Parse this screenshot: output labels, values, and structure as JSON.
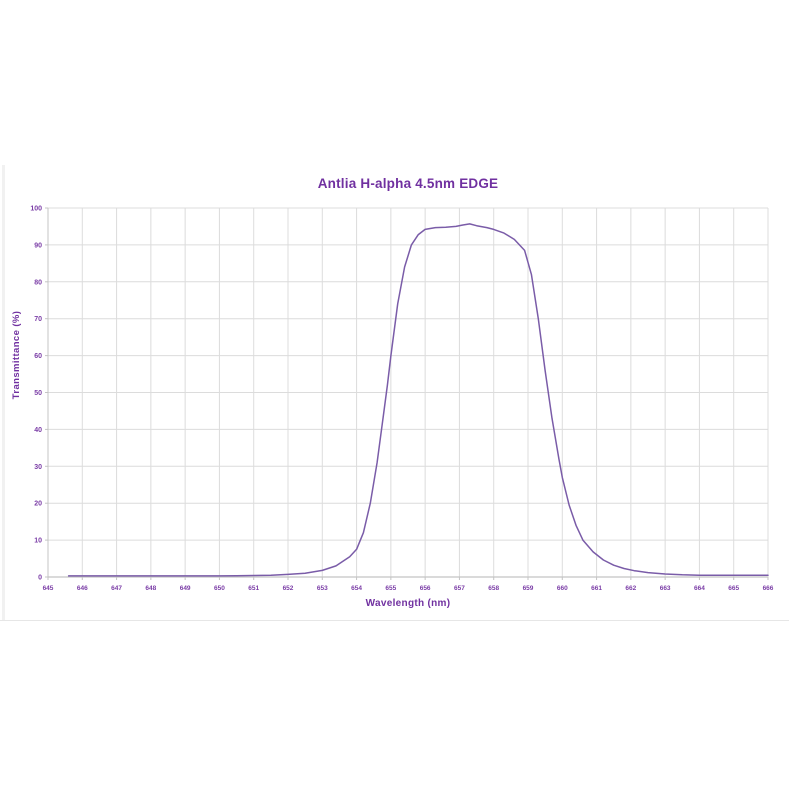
{
  "chart_data": {
    "type": "line",
    "title": "Antlia H-alpha 4.5nm EDGE",
    "xlabel": "Wavelength  (nm)",
    "ylabel": "Transmittance  (%)",
    "xlim": [
      645,
      666
    ],
    "ylim": [
      0,
      100
    ],
    "x_ticks": [
      645,
      646,
      647,
      648,
      649,
      650,
      651,
      652,
      653,
      654,
      655,
      656,
      657,
      658,
      659,
      660,
      661,
      662,
      663,
      664,
      665,
      666
    ],
    "y_ticks": [
      0,
      10,
      20,
      30,
      40,
      50,
      60,
      70,
      80,
      90,
      100
    ],
    "grid": "both",
    "legend": "none",
    "colors": {
      "title": "#7030a0",
      "axis_text": "#7a3ca6",
      "grid": "#dcdcdc",
      "axis_line": "#c4c4c4",
      "curve": "#7a5ca8"
    },
    "series": [
      {
        "name": "transmittance",
        "points": [
          [
            645.6,
            0.3
          ],
          [
            646,
            0.3
          ],
          [
            647,
            0.3
          ],
          [
            648,
            0.3
          ],
          [
            649,
            0.3
          ],
          [
            650,
            0.3
          ],
          [
            650.5,
            0.35
          ],
          [
            651,
            0.4
          ],
          [
            651.5,
            0.5
          ],
          [
            652,
            0.7
          ],
          [
            652.5,
            1.0
          ],
          [
            653,
            1.8
          ],
          [
            653.4,
            3.0
          ],
          [
            653.8,
            5.5
          ],
          [
            654.0,
            7.5
          ],
          [
            654.2,
            12
          ],
          [
            654.4,
            20
          ],
          [
            654.6,
            31
          ],
          [
            654.8,
            45
          ],
          [
            654.9,
            52
          ],
          [
            655.0,
            60
          ],
          [
            655.2,
            74
          ],
          [
            655.4,
            84
          ],
          [
            655.6,
            90
          ],
          [
            655.8,
            92.8
          ],
          [
            656.0,
            94.2
          ],
          [
            656.3,
            94.7
          ],
          [
            656.6,
            94.8
          ],
          [
            656.9,
            95.0
          ],
          [
            657.1,
            95.4
          ],
          [
            657.3,
            95.7
          ],
          [
            657.5,
            95.2
          ],
          [
            657.8,
            94.7
          ],
          [
            658.0,
            94.2
          ],
          [
            658.3,
            93.2
          ],
          [
            658.6,
            91.5
          ],
          [
            658.9,
            88.5
          ],
          [
            659.1,
            82
          ],
          [
            659.3,
            70
          ],
          [
            659.5,
            56
          ],
          [
            659.7,
            43
          ],
          [
            659.9,
            32
          ],
          [
            660.0,
            27
          ],
          [
            660.2,
            19.5
          ],
          [
            660.4,
            14
          ],
          [
            660.6,
            10
          ],
          [
            660.9,
            6.8
          ],
          [
            661.2,
            4.6
          ],
          [
            661.5,
            3.2
          ],
          [
            661.8,
            2.3
          ],
          [
            662.1,
            1.7
          ],
          [
            662.5,
            1.2
          ],
          [
            663.0,
            0.8
          ],
          [
            663.5,
            0.6
          ],
          [
            664.0,
            0.5
          ],
          [
            664.5,
            0.45
          ],
          [
            665.0,
            0.45
          ],
          [
            665.5,
            0.45
          ],
          [
            666.0,
            0.45
          ]
        ]
      }
    ]
  }
}
